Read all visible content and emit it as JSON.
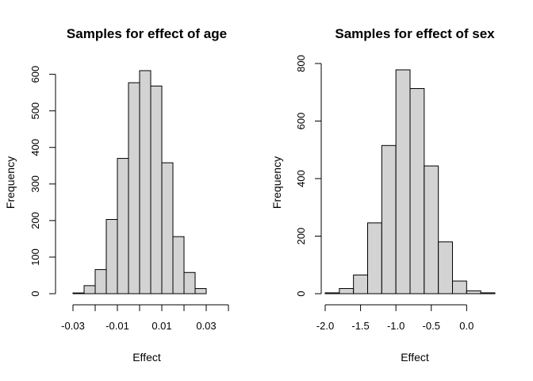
{
  "chart_data": [
    {
      "type": "bar",
      "title": "Samples for effect of age",
      "xlabel": "Effect",
      "ylabel": "Frequency",
      "bin_edges": [
        -0.03,
        -0.025,
        -0.02,
        -0.015,
        -0.01,
        -0.005,
        0.0,
        0.005,
        0.01,
        0.015,
        0.02,
        0.025,
        0.03,
        0.035,
        0.04
      ],
      "values": [
        2,
        22,
        66,
        203,
        370,
        577,
        610,
        568,
        358,
        156,
        58,
        14,
        0,
        0
      ],
      "xlim": [
        -0.03,
        0.04
      ],
      "ylim": [
        0,
        610
      ],
      "x_ticks": [
        -0.03,
        -0.02,
        -0.01,
        0.0,
        0.01,
        0.02,
        0.03,
        0.04
      ],
      "x_tick_labels": [
        "-0.03",
        "",
        "-0.01",
        "",
        "0.01",
        "",
        "0.03",
        ""
      ],
      "y_ticks": [
        0,
        100,
        200,
        300,
        400,
        500,
        600
      ],
      "y_tick_labels": [
        "0",
        "100",
        "200",
        "300",
        "400",
        "500",
        "600"
      ],
      "grid": false
    },
    {
      "type": "bar",
      "title": "Samples for effect of sex",
      "xlabel": "Effect",
      "ylabel": "Frequency",
      "bin_edges": [
        -2.0,
        -1.8,
        -1.6,
        -1.4,
        -1.2,
        -1.0,
        -0.8,
        -0.6,
        -0.4,
        -0.2,
        0.0,
        0.2,
        0.4
      ],
      "values": [
        3,
        18,
        65,
        246,
        515,
        778,
        713,
        444,
        180,
        44,
        10,
        3
      ],
      "xlim": [
        -2.0,
        0.4
      ],
      "ylim": [
        0,
        800
      ],
      "x_ticks": [
        -2.0,
        -1.5,
        -1.0,
        -0.5,
        0.0
      ],
      "x_tick_labels": [
        "-2.0",
        "-1.5",
        "-1.0",
        "-0.5",
        "0.0"
      ],
      "y_ticks": [
        0,
        200,
        400,
        600,
        800
      ],
      "y_tick_labels": [
        "0",
        "200",
        "400",
        "600",
        "800"
      ],
      "grid": false
    }
  ]
}
